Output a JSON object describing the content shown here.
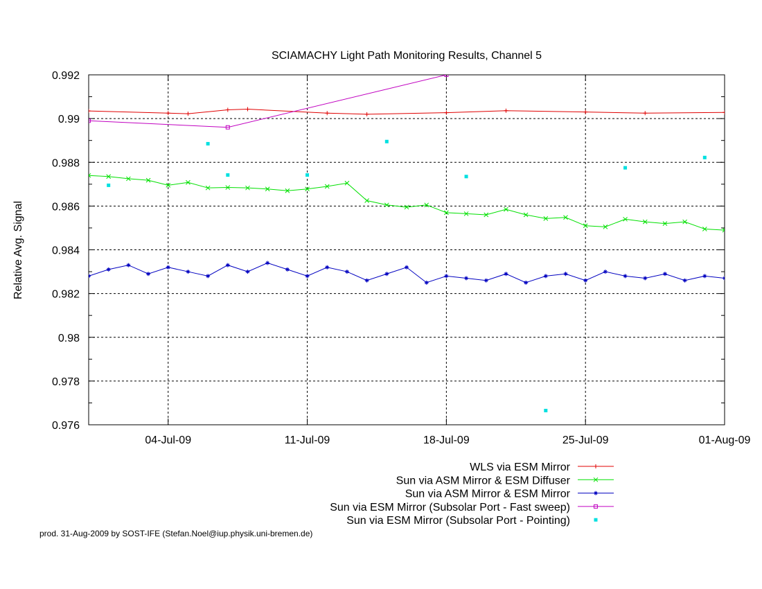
{
  "chart_data": {
    "type": "line",
    "title": "SCIAMACHY Light Path Monitoring Results, Channel 5",
    "xlabel": "",
    "ylabel": "Relative Avg. Signal",
    "x_axis": {
      "type": "date",
      "range": [
        "2009-06-30",
        "2009-08-01"
      ],
      "ticks": [
        {
          "date": "2009-07-04",
          "label": "04-Jul-09"
        },
        {
          "date": "2009-07-11",
          "label": "11-Jul-09"
        },
        {
          "date": "2009-07-18",
          "label": "18-Jul-09"
        },
        {
          "date": "2009-07-25",
          "label": "25-Jul-09"
        },
        {
          "date": "2009-08-01",
          "label": "01-Aug-09"
        }
      ]
    },
    "ylim": [
      0.976,
      0.992
    ],
    "yticks": [
      {
        "value": 0.976,
        "label": "0.976"
      },
      {
        "value": 0.978,
        "label": "0.978"
      },
      {
        "value": 0.98,
        "label": "0.98"
      },
      {
        "value": 0.982,
        "label": "0.982"
      },
      {
        "value": 0.984,
        "label": "0.984"
      },
      {
        "value": 0.986,
        "label": "0.986"
      },
      {
        "value": 0.988,
        "label": "0.988"
      },
      {
        "value": 0.99,
        "label": "0.99"
      },
      {
        "value": 0.992,
        "label": "0.992"
      }
    ],
    "grid": true,
    "legend_position": "below",
    "series": [
      {
        "name": "WLS via ESM Mirror",
        "color": "#e00000",
        "style": "line",
        "marker": "plus",
        "x": [
          "2009-06-30",
          "2009-07-04",
          "2009-07-05",
          "2009-07-07",
          "2009-07-08",
          "2009-07-12",
          "2009-07-14",
          "2009-07-18",
          "2009-07-21",
          "2009-07-25",
          "2009-07-28",
          "2009-08-01"
        ],
        "y": [
          0.99035,
          0.99025,
          0.99022,
          0.9904,
          0.99043,
          0.99025,
          0.9902,
          0.99027,
          0.99036,
          0.9903,
          0.99025,
          0.99028
        ]
      },
      {
        "name": "Sun via ASM Mirror & ESM Diffuser",
        "color": "#00e000",
        "style": "line",
        "marker": "x",
        "x": [
          "2009-06-30",
          "2009-07-01",
          "2009-07-02",
          "2009-07-03",
          "2009-07-04",
          "2009-07-05",
          "2009-07-06",
          "2009-07-07",
          "2009-07-08",
          "2009-07-09",
          "2009-07-10",
          "2009-07-11",
          "2009-07-12",
          "2009-07-13",
          "2009-07-14",
          "2009-07-15",
          "2009-07-16",
          "2009-07-17",
          "2009-07-18",
          "2009-07-19",
          "2009-07-20",
          "2009-07-21",
          "2009-07-22",
          "2009-07-23",
          "2009-07-24",
          "2009-07-25",
          "2009-07-26",
          "2009-07-27",
          "2009-07-28",
          "2009-07-29",
          "2009-07-30",
          "2009-07-31",
          "2009-08-01"
        ],
        "y": [
          0.9874,
          0.98735,
          0.98725,
          0.98718,
          0.98695,
          0.98708,
          0.98683,
          0.98685,
          0.98683,
          0.98678,
          0.9867,
          0.98678,
          0.9869,
          0.98705,
          0.98625,
          0.98605,
          0.98595,
          0.98605,
          0.9857,
          0.98565,
          0.9856,
          0.98585,
          0.9856,
          0.98543,
          0.98548,
          0.9851,
          0.98505,
          0.9854,
          0.98528,
          0.9852,
          0.98528,
          0.98495,
          0.9849
        ]
      },
      {
        "name": "Sun via ASM Mirror & ESM Mirror",
        "color": "#0000c0",
        "style": "line",
        "marker": "star",
        "x": [
          "2009-06-30",
          "2009-07-01",
          "2009-07-02",
          "2009-07-03",
          "2009-07-04",
          "2009-07-05",
          "2009-07-06",
          "2009-07-07",
          "2009-07-08",
          "2009-07-09",
          "2009-07-10",
          "2009-07-11",
          "2009-07-12",
          "2009-07-13",
          "2009-07-14",
          "2009-07-15",
          "2009-07-16",
          "2009-07-17",
          "2009-07-18",
          "2009-07-19",
          "2009-07-20",
          "2009-07-21",
          "2009-07-22",
          "2009-07-23",
          "2009-07-24",
          "2009-07-25",
          "2009-07-26",
          "2009-07-27",
          "2009-07-28",
          "2009-07-29",
          "2009-07-30",
          "2009-07-31",
          "2009-08-01"
        ],
        "y": [
          0.9828,
          0.9831,
          0.9833,
          0.9829,
          0.9832,
          0.983,
          0.9828,
          0.9833,
          0.983,
          0.9834,
          0.9831,
          0.9828,
          0.9832,
          0.983,
          0.9826,
          0.9829,
          0.9832,
          0.9825,
          0.9828,
          0.9827,
          0.9826,
          0.9829,
          0.9825,
          0.9828,
          0.9829,
          0.9826,
          0.983,
          0.9828,
          0.9827,
          0.9829,
          0.9826,
          0.9828,
          0.9827
        ]
      },
      {
        "name": "Sun via ESM Mirror (Subsolar Port - Fast sweep)",
        "color": "#c000c0",
        "style": "line",
        "marker": "square",
        "x": [
          "2009-06-30",
          "2009-07-07",
          "2009-07-18"
        ],
        "y": [
          0.9899,
          0.9896,
          0.992
        ]
      },
      {
        "name": "Sun via ESM Mirror (Subsolar Port - Pointing)",
        "color": "#00e0e0",
        "style": "points",
        "marker": "dot",
        "x": [
          "2009-07-01",
          "2009-07-06",
          "2009-07-07",
          "2009-07-11",
          "2009-07-15",
          "2009-07-19",
          "2009-07-23",
          "2009-07-27",
          "2009-07-31"
        ],
        "y": [
          0.98695,
          0.98885,
          0.98742,
          0.98742,
          0.98895,
          0.98735,
          0.97665,
          0.98775,
          0.98822
        ]
      }
    ]
  },
  "footer": "prod. 31-Aug-2009 by SOST-IFE (Stefan.Noel@iup.physik.uni-bremen.de)"
}
